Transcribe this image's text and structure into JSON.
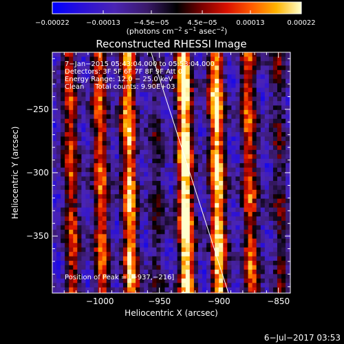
{
  "chart_data": {
    "type": "heatmap",
    "title": "Reconstructed RHESSI Image",
    "xlabel": "Heliocentric X (arcsec)",
    "ylabel": "Heliocentric Y (arcsec)",
    "xlim": [
      -1040,
      -840
    ],
    "ylim": [
      -395,
      -205
    ],
    "xticks": [
      -1000,
      -950,
      -900,
      -850
    ],
    "xtick_labels": [
      "−1000",
      "−950",
      "−900",
      "−850"
    ],
    "yticks": [
      -250,
      -300,
      -350
    ],
    "ytick_labels": [
      "−250",
      "−300",
      "−350"
    ],
    "colorbar": {
      "range": [
        -0.00022,
        0.00022
      ],
      "tick_values": [
        -0.00022,
        -0.00013,
        -4.5e-05,
        4.5e-05,
        0.00013,
        0.00022
      ],
      "tick_labels": [
        "−0.00022",
        "−0.00013",
        "−4.5e−05",
        "4.5e−05",
        "0.00013",
        "0.00022"
      ],
      "unit_prefix": "(photons cm",
      "unit_sup1": "−2",
      "unit_mid": " s",
      "unit_sup2": "−1",
      "unit_mid2": " asec",
      "unit_sup3": "−2",
      "unit_suffix": ")"
    },
    "info_lines": [
      "7−Jan−2015 05:43:04.000 to 05:53:04.000",
      "Detectors: 3F 5F 6F 7F 8F 9F Att 0",
      "Energy Range: 12.0 − 25.0 keV",
      "Clean     Total counts: 9.90E+03"
    ],
    "peak_text": "Position of Peak = [−937,−216]",
    "timestamp": "6−Jul−2017 03:53",
    "bands": [
      {
        "x": -1026,
        "amp": 0.55
      },
      {
        "x": -1001,
        "amp": 0.6
      },
      {
        "x": -977,
        "amp": 0.75
      },
      {
        "x": -954,
        "amp": 0.25
      },
      {
        "x": -930,
        "amp": 0.95
      },
      {
        "x": -903,
        "amp": 0.85
      },
      {
        "x": -876,
        "amp": 0.6
      },
      {
        "x": -851,
        "amp": 0.3
      }
    ],
    "limb_line": [
      [
        -957,
        -205
      ],
      [
        -892,
        -395
      ]
    ],
    "colors": {
      "background": "#000000",
      "text": "#ffffff",
      "limb": "#ffffff"
    }
  }
}
